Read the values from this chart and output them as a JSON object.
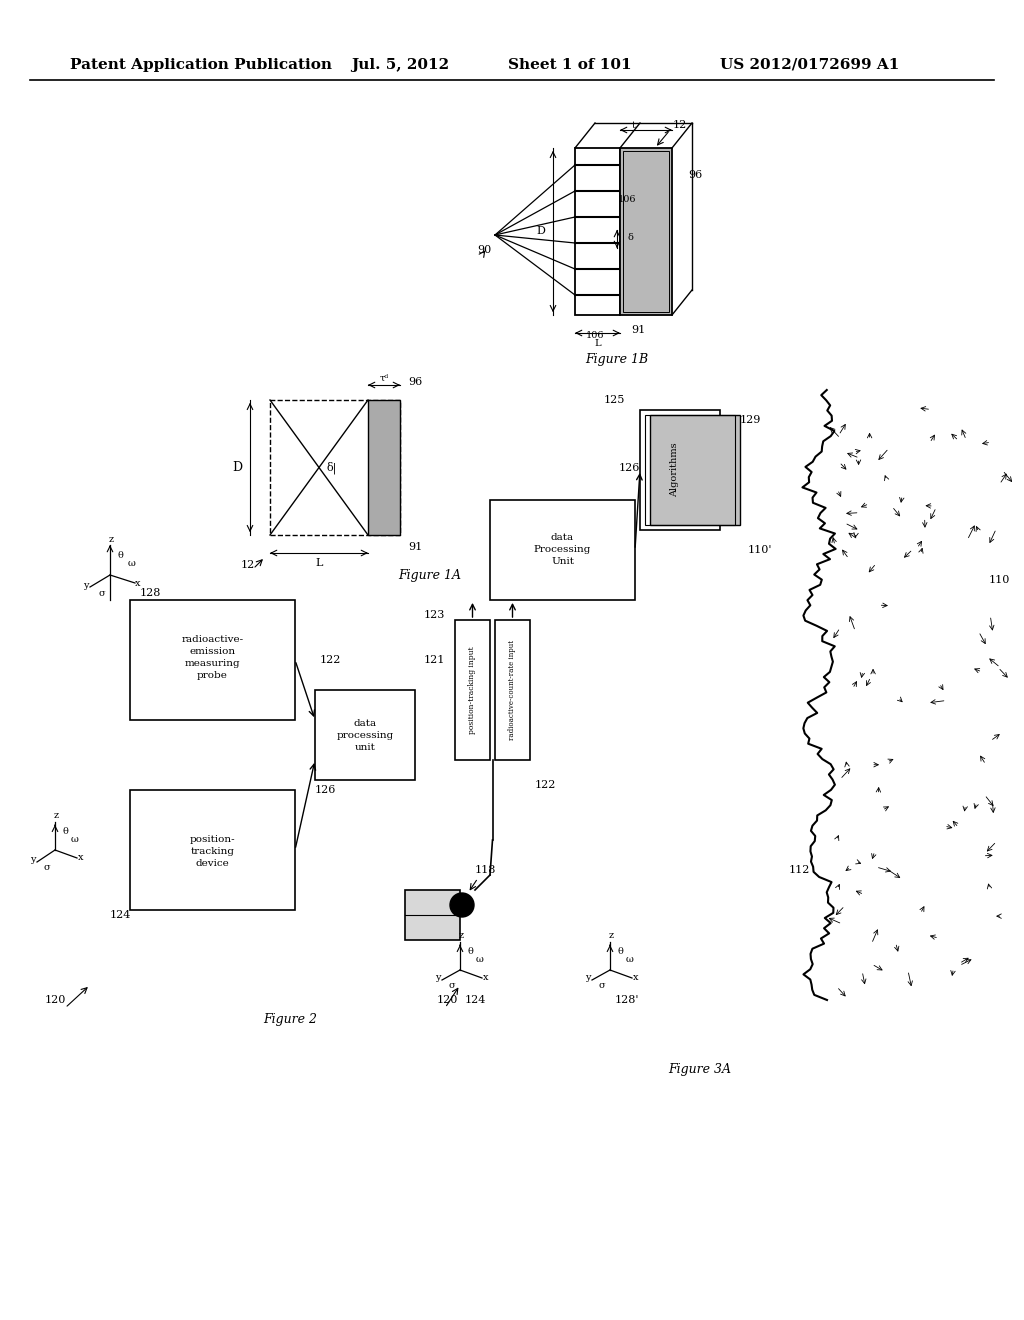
{
  "bg_color": "#ffffff",
  "header_text": "Patent Application Publication",
  "header_date": "Jul. 5, 2012",
  "header_sheet": "Sheet 1 of 101",
  "header_patent": "US 2012/0172699 A1",
  "fig1b_label": "Figure 1B",
  "fig1a_label": "Figure 1A",
  "fig2_label": "Figure 2",
  "fig3a_label": "Figure 3A"
}
